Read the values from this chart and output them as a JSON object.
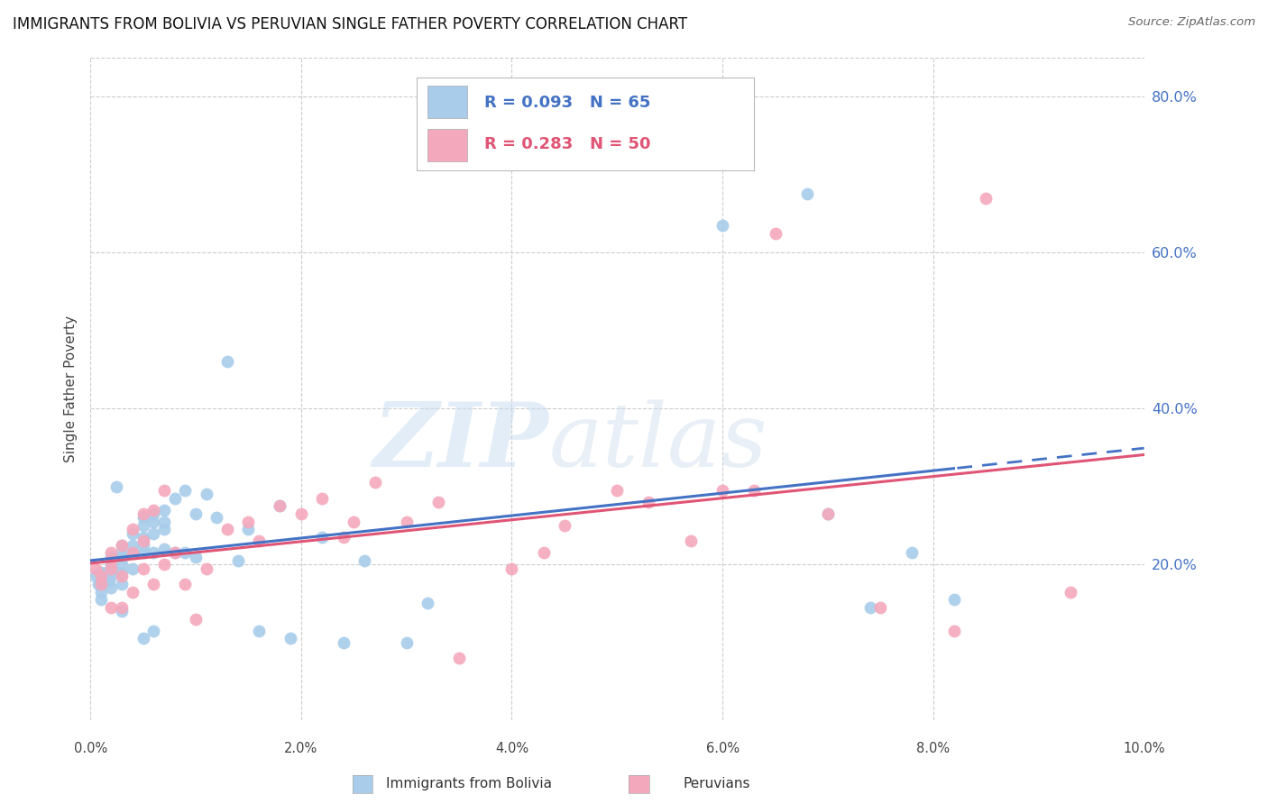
{
  "title": "IMMIGRANTS FROM BOLIVIA VS PERUVIAN SINGLE FATHER POVERTY CORRELATION CHART",
  "source": "Source: ZipAtlas.com",
  "ylabel": "Single Father Poverty",
  "xlim": [
    0.0,
    0.1
  ],
  "ylim": [
    0.0,
    0.85
  ],
  "bolivia_R": 0.093,
  "bolivia_N": 65,
  "peru_R": 0.283,
  "peru_N": 50,
  "bolivia_color": "#A8CCEA",
  "peru_color": "#F4A8BC",
  "bolivia_line_color": "#4472C4",
  "peru_line_color": "#E05575",
  "bolivia_line_dash": "#7AAAD8",
  "bolivia_x": [
    0.0005,
    0.0008,
    0.001,
    0.001,
    0.001,
    0.001,
    0.0015,
    0.0018,
    0.002,
    0.002,
    0.002,
    0.002,
    0.002,
    0.0025,
    0.003,
    0.003,
    0.003,
    0.003,
    0.003,
    0.003,
    0.003,
    0.004,
    0.004,
    0.004,
    0.004,
    0.005,
    0.005,
    0.005,
    0.005,
    0.005,
    0.005,
    0.006,
    0.006,
    0.006,
    0.006,
    0.006,
    0.007,
    0.007,
    0.007,
    0.007,
    0.008,
    0.008,
    0.009,
    0.009,
    0.01,
    0.01,
    0.011,
    0.012,
    0.013,
    0.014,
    0.015,
    0.016,
    0.018,
    0.019,
    0.022,
    0.024,
    0.026,
    0.03,
    0.032,
    0.06,
    0.068,
    0.07,
    0.074,
    0.078,
    0.082
  ],
  "bolivia_y": [
    0.185,
    0.175,
    0.19,
    0.18,
    0.165,
    0.155,
    0.19,
    0.18,
    0.21,
    0.2,
    0.195,
    0.185,
    0.17,
    0.3,
    0.225,
    0.215,
    0.21,
    0.2,
    0.19,
    0.175,
    0.14,
    0.24,
    0.225,
    0.215,
    0.195,
    0.26,
    0.25,
    0.235,
    0.225,
    0.215,
    0.105,
    0.265,
    0.255,
    0.24,
    0.215,
    0.115,
    0.27,
    0.255,
    0.245,
    0.22,
    0.285,
    0.215,
    0.295,
    0.215,
    0.265,
    0.21,
    0.29,
    0.26,
    0.46,
    0.205,
    0.245,
    0.115,
    0.275,
    0.105,
    0.235,
    0.1,
    0.205,
    0.1,
    0.15,
    0.635,
    0.675,
    0.265,
    0.145,
    0.215,
    0.155
  ],
  "peru_x": [
    0.0005,
    0.001,
    0.001,
    0.002,
    0.002,
    0.002,
    0.002,
    0.003,
    0.003,
    0.003,
    0.004,
    0.004,
    0.004,
    0.005,
    0.005,
    0.005,
    0.006,
    0.006,
    0.007,
    0.007,
    0.008,
    0.009,
    0.01,
    0.011,
    0.013,
    0.015,
    0.016,
    0.018,
    0.02,
    0.022,
    0.024,
    0.025,
    0.027,
    0.03,
    0.033,
    0.035,
    0.04,
    0.043,
    0.045,
    0.05,
    0.053,
    0.057,
    0.06,
    0.063,
    0.065,
    0.07,
    0.075,
    0.082,
    0.085,
    0.093
  ],
  "peru_y": [
    0.195,
    0.185,
    0.175,
    0.215,
    0.205,
    0.195,
    0.145,
    0.225,
    0.185,
    0.145,
    0.245,
    0.215,
    0.165,
    0.265,
    0.23,
    0.195,
    0.27,
    0.175,
    0.295,
    0.2,
    0.215,
    0.175,
    0.13,
    0.195,
    0.245,
    0.255,
    0.23,
    0.275,
    0.265,
    0.285,
    0.235,
    0.255,
    0.305,
    0.255,
    0.28,
    0.08,
    0.195,
    0.215,
    0.25,
    0.295,
    0.28,
    0.23,
    0.295,
    0.295,
    0.625,
    0.265,
    0.145,
    0.115,
    0.67,
    0.165
  ],
  "watermark_zip": "ZIP",
  "watermark_atlas": "atlas",
  "grid_color": "#CCCCCC",
  "background_color": "#FFFFFF",
  "x_tick_labels": [
    "0.0%",
    "2.0%",
    "4.0%",
    "6.0%",
    "8.0%",
    "10.0%"
  ],
  "x_tick_vals": [
    0.0,
    0.02,
    0.04,
    0.06,
    0.08,
    0.1
  ],
  "y_tick_labels": [
    "20.0%",
    "40.0%",
    "60.0%",
    "80.0%"
  ],
  "y_tick_vals": [
    0.2,
    0.4,
    0.6,
    0.8
  ]
}
